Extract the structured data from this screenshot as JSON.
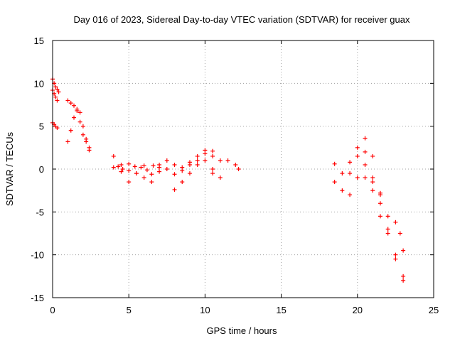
{
  "chart_data": {
    "type": "scatter",
    "title": "Day 016 of 2023, Sidereal Day-to-day VTEC variation (SDTVAR) for receiver guax",
    "xlabel": "GPS time / hours",
    "ylabel": "SDTVAR / TECUs",
    "xlim": [
      0,
      25
    ],
    "ylim": [
      -15,
      15
    ],
    "xticks": [
      0,
      5,
      10,
      15,
      20,
      25
    ],
    "yticks": [
      -15,
      -10,
      -5,
      0,
      5,
      10,
      15
    ],
    "xtick_labels": [
      "0",
      "5",
      "10",
      "15",
      "20",
      "25"
    ],
    "ytick_labels": [
      "-15",
      "-10",
      "-5",
      "0",
      "5",
      "10",
      "15"
    ],
    "grid": true,
    "marker": "+",
    "color": "#ff0000",
    "series": [
      {
        "name": "SDTVAR",
        "segments": [
          {
            "x": [
              0.0,
              0.1,
              0.2,
              0.3,
              0.4
            ],
            "y": [
              10.5,
              10.0,
              9.6,
              9.3,
              9.0
            ]
          },
          {
            "x": [
              0.0,
              0.1,
              0.2,
              0.3
            ],
            "y": [
              9.2,
              8.8,
              8.4,
              8.0
            ]
          },
          {
            "x": [
              0.0,
              0.1,
              0.2,
              0.3
            ],
            "y": [
              5.4,
              5.2,
              5.0,
              4.8
            ]
          },
          {
            "x": [
              1.0,
              1.2,
              1.4,
              1.6,
              1.8,
              2.0,
              2.2,
              2.4
            ],
            "y": [
              8.0,
              7.7,
              7.4,
              6.8,
              5.5,
              4.0,
              3.2,
              2.5
            ]
          },
          {
            "x": [
              1.0,
              1.2,
              1.4,
              1.6
            ],
            "y": [
              3.2,
              4.5,
              6.0,
              7.0
            ]
          },
          {
            "x": [
              1.8,
              2.0,
              2.2,
              2.4
            ],
            "y": [
              6.6,
              5.0,
              3.5,
              2.2
            ]
          },
          {
            "x": [
              4.0,
              4.3,
              4.6,
              5.0,
              5.4,
              5.8,
              6.2,
              6.6,
              7.0
            ],
            "y": [
              1.5,
              0.3,
              0.0,
              -0.2,
              0.3,
              0.2,
              -0.1,
              0.4,
              0.2
            ]
          },
          {
            "x": [
              4.5,
              5.0,
              5.5,
              6.0,
              6.5,
              7.0
            ],
            "y": [
              0.5,
              -1.5,
              -0.5,
              -1.0,
              -1.5,
              -0.3
            ]
          },
          {
            "x": [
              4.0,
              4.5,
              5.0,
              5.5,
              6.0,
              6.5,
              7.0
            ],
            "y": [
              0.2,
              -0.3,
              0.6,
              -0.5,
              0.4,
              -0.6,
              0.5
            ]
          },
          {
            "x": [
              7.5,
              8.0,
              8.5,
              9.0,
              9.5,
              10.0,
              10.5,
              11.0
            ],
            "y": [
              1.0,
              0.5,
              -0.2,
              0.5,
              1.0,
              1.8,
              2.1,
              1.0
            ]
          },
          {
            "x": [
              7.5,
              8.0,
              8.5,
              9.0,
              9.5,
              10.0,
              10.5
            ],
            "y": [
              0.0,
              -0.6,
              0.2,
              0.8,
              1.5,
              2.2,
              1.5
            ]
          },
          {
            "x": [
              8.0,
              8.5,
              9.0,
              9.5,
              10.0,
              10.5
            ],
            "y": [
              -2.4,
              -1.5,
              -0.5,
              0.5,
              1.0,
              0.0
            ]
          },
          {
            "x": [
              10.5,
              11.0,
              11.5,
              12.0,
              12.2
            ],
            "y": [
              -0.5,
              -1.0,
              1.0,
              0.5,
              0.0
            ]
          },
          {
            "x": [
              18.5,
              19.0,
              19.5,
              20.0,
              20.5,
              21.0
            ],
            "y": [
              0.6,
              -0.5,
              0.8,
              2.5,
              3.6,
              1.5
            ]
          },
          {
            "x": [
              18.5,
              19.0,
              19.5,
              20.0,
              20.5,
              21.0,
              21.5,
              22.0
            ],
            "y": [
              -1.5,
              -2.5,
              -0.5,
              1.5,
              2.0,
              -1.0,
              -3.0,
              -5.5
            ]
          },
          {
            "x": [
              19.5,
              20.0,
              20.5,
              21.0,
              21.5,
              22.0,
              22.5,
              23.0
            ],
            "y": [
              -3.0,
              -1.0,
              0.5,
              -1.5,
              -4.0,
              -7.0,
              -10.0,
              -12.5
            ]
          },
          {
            "x": [
              21.5,
              22.0,
              22.5,
              23.0
            ],
            "y": [
              -5.5,
              -7.5,
              -10.5,
              -13.0
            ]
          },
          {
            "x": [
              22.5,
              22.8,
              23.0
            ],
            "y": [
              -6.2,
              -7.5,
              -9.5
            ]
          },
          {
            "x": [
              20.5,
              21.0,
              21.5
            ],
            "y": [
              -1.0,
              -2.5,
              -2.8
            ]
          }
        ]
      }
    ]
  }
}
